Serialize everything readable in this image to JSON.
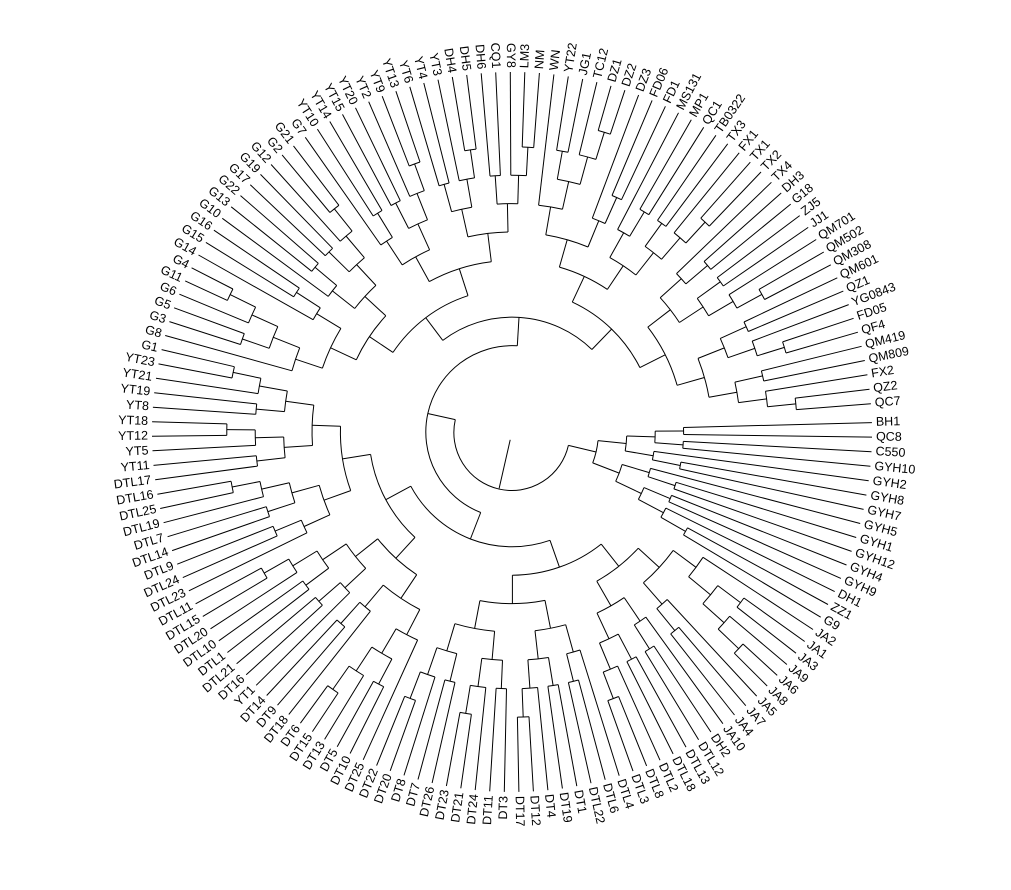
{
  "diagram": {
    "type": "circular-dendrogram",
    "leaf_labels": [
      "BH1",
      "QC8",
      "C550",
      "GYH10",
      "GYH2",
      "GYH8",
      "GYH7",
      "GYH5",
      "GYH1",
      "GYH12",
      "GYH4",
      "GYH9",
      "DH1",
      "ZZ1",
      "G9",
      "JA2",
      "JA1",
      "JA3",
      "JA9",
      "JA6",
      "JA8",
      "JA5",
      "JA7",
      "JA4",
      "JA10",
      "DH2",
      "DTL12",
      "DTL13",
      "DTL18",
      "DTL2",
      "DTL8",
      "DTL3",
      "DTL4",
      "DTL6",
      "DTL22",
      "DT1",
      "DT19",
      "DT4",
      "DT12",
      "DT17",
      "DT3",
      "DT11",
      "DT24",
      "DT21",
      "DT23",
      "DT26",
      "DT7",
      "DT8",
      "DT20",
      "DT22",
      "DT25",
      "DT10",
      "DT5",
      "DT13",
      "DT15",
      "DT6",
      "DT18",
      "DT9",
      "DT14",
      "YT1",
      "DT16",
      "DTL21",
      "DTL1",
      "DTL10",
      "DTL20",
      "DTL15",
      "DTL11",
      "DTL23",
      "DTL24",
      "DTL9",
      "DTL14",
      "DTL7",
      "DTL19",
      "DTL25",
      "DTL16",
      "DTL17",
      "YT11",
      "YT5",
      "YT12",
      "YT18",
      "YT8",
      "YT19",
      "YT21",
      "YT23",
      "G1",
      "G8",
      "G3",
      "G5",
      "G6",
      "G11",
      "G4",
      "G14",
      "G15",
      "G16",
      "G10",
      "G13",
      "G22",
      "G17",
      "G19",
      "G12",
      "G2",
      "G21",
      "G7",
      "YT10",
      "YT14",
      "YT15",
      "YT20",
      "YT2",
      "YT9",
      "YT13",
      "YT6",
      "YT4",
      "YT3",
      "DH4",
      "DH5",
      "DH6",
      "CQ1",
      "GY8",
      "LM3",
      "NM",
      "WN",
      "YT22",
      "JG1",
      "TC12",
      "DZ1",
      "DZ2",
      "DZ3",
      "FD06",
      "FD1",
      "MS131",
      "MP1",
      "QC1",
      "TB0322",
      "TX3",
      "FX1",
      "TX1",
      "TX2",
      "TX4",
      "DH3",
      "G18",
      "ZJ5",
      "JJ1",
      "QM701",
      "QM502",
      "QM308",
      "QM601",
      "QZ1",
      "YG0843",
      "FD05",
      "QF4",
      "QM419",
      "QM809",
      "FX2",
      "QZ2",
      "QC7"
    ]
  }
}
